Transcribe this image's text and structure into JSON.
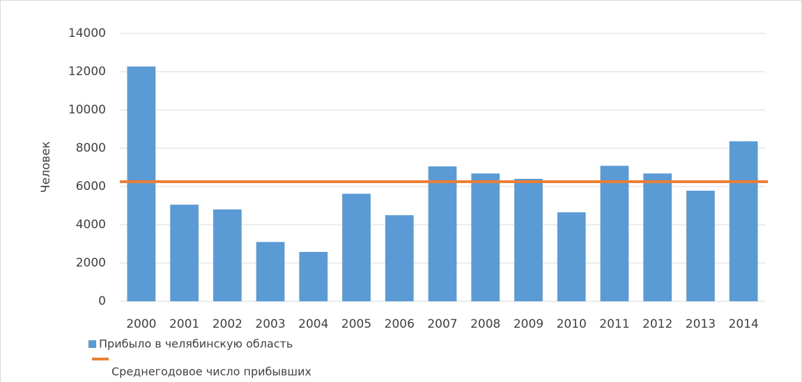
{
  "chart_data": {
    "type": "bar",
    "y_label": "Человек",
    "categories": [
      "2000",
      "2001",
      "2002",
      "2003",
      "2004",
      "2005",
      "2006",
      "2007",
      "2008",
      "2009",
      "2010",
      "2011",
      "2012",
      "2013",
      "2014"
    ],
    "series": [
      {
        "name": "Прибыло в челябинскую область",
        "color": "#5b9bd5",
        "values": [
          12270,
          5050,
          4800,
          3100,
          2580,
          5620,
          4500,
          7050,
          6680,
          6400,
          4650,
          7080,
          6680,
          5780,
          8360
        ]
      }
    ],
    "reference_line": {
      "name": "Среднегодовое число прибывших",
      "color": "#ed7d31",
      "value": 6250
    },
    "ylim": [
      0,
      14000
    ],
    "yticks": [
      0,
      2000,
      4000,
      6000,
      8000,
      10000,
      12000,
      14000
    ],
    "grid": true
  }
}
